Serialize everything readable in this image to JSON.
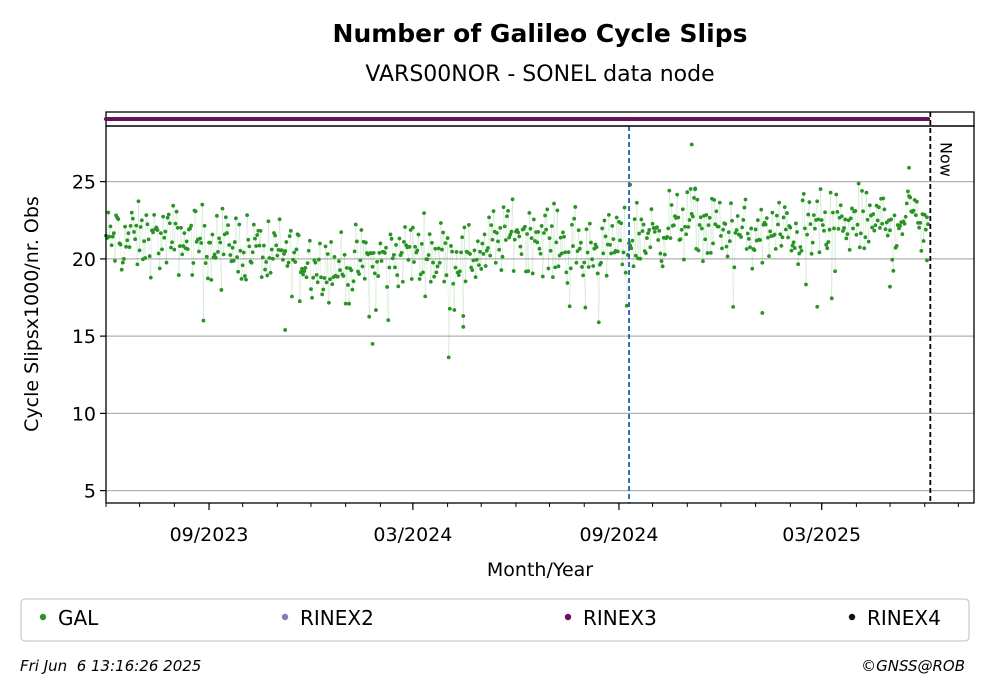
{
  "chart_data": {
    "type": "scatter",
    "title": "Number of Galileo Cycle Slips",
    "subtitle": "VARS00NOR - SONEL data node",
    "xlabel": "Month/Year",
    "ylabel": "Cycle Slipsx1000/nr. Obs",
    "x_range": [
      "2023-06-01",
      "2025-07-15"
    ],
    "ylim": [
      4.2,
      28.6
    ],
    "y_ticks": [
      5,
      10,
      15,
      20,
      25
    ],
    "x_ticks": [
      {
        "date": "2023-09-01",
        "label": "09/2023"
      },
      {
        "date": "2024-03-01",
        "label": "03/2024"
      },
      {
        "date": "2024-09-01",
        "label": "09/2024"
      },
      {
        "date": "2025-03-01",
        "label": "03/2025"
      }
    ],
    "grid": "horizontal",
    "vline_event": {
      "date": "2024-09-10",
      "color": "#1f62b5",
      "style": "dashed"
    },
    "vline_now": {
      "date": "2025-06-06",
      "label": "Now",
      "style": "dashed"
    },
    "rinex_strip": {
      "series": "RINEX3",
      "from": "2023-06-01",
      "to": "2025-06-04",
      "color": "#6a0f5e"
    },
    "series": [
      {
        "name": "GAL",
        "color": "#2a9326",
        "from": "2023-06-01",
        "to": "2025-06-04",
        "trend_points": [
          [
            "2023-06-01",
            21.3
          ],
          [
            "2023-09-01",
            21.2
          ],
          [
            "2023-11-15",
            20.2
          ],
          [
            "2024-01-01",
            19.3
          ],
          [
            "2024-03-01",
            20.5
          ],
          [
            "2024-04-20",
            20.1
          ],
          [
            "2024-06-01",
            21.8
          ],
          [
            "2024-08-01",
            20.4
          ],
          [
            "2024-09-01",
            21.0
          ],
          [
            "2024-11-01",
            22.4
          ],
          [
            "2025-01-01",
            21.4
          ],
          [
            "2025-03-01",
            22.0
          ],
          [
            "2025-05-01",
            22.4
          ],
          [
            "2025-06-04",
            23.0
          ]
        ],
        "outliers": [
          [
            "2024-11-05",
            27.4
          ],
          [
            "2024-11-08",
            24.5
          ],
          [
            "2023-11-08",
            15.4
          ],
          [
            "2024-01-25",
            14.5
          ],
          [
            "2024-04-15",
            16.3
          ],
          [
            "2025-01-07",
            16.5
          ],
          [
            "2025-02-25",
            16.9
          ],
          [
            "2025-05-18",
            25.9
          ],
          [
            "2025-06-03",
            19.9
          ],
          [
            "2024-09-11",
            24.8
          ],
          [
            "2025-05-01",
            18.2
          ]
        ]
      },
      {
        "name": "RINEX2",
        "color": "#7b7fba"
      },
      {
        "name": "RINEX3",
        "color": "#6a0f5e"
      },
      {
        "name": "RINEX4",
        "color": "#1a0a1e"
      }
    ]
  },
  "footer": {
    "timestamp": "Fri Jun  6 13:16:26 2025",
    "copyright": "©GNSS@ROB"
  }
}
